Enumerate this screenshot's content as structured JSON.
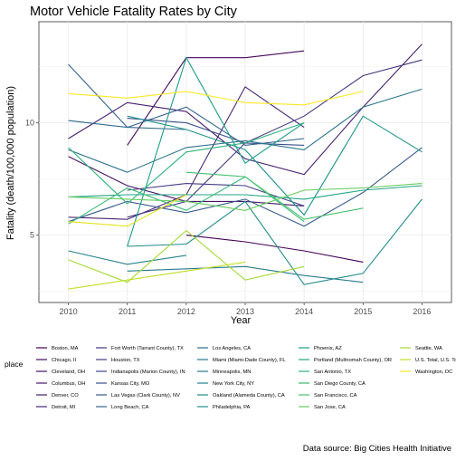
{
  "chart_data": {
    "type": "line",
    "title": "Motor Vehicle Fatality Rates by City",
    "xlabel": "Year",
    "ylabel": "Fatality (death/100,000 population)",
    "caption": "Data source: Big Cities Health Initiative",
    "legend_title": "place",
    "legend_placement": "bottom",
    "grid": true,
    "xlim": [
      2009.5,
      2016.5
    ],
    "ylim": [
      2.0,
      14.5
    ],
    "x_ticks": [
      2010,
      2011,
      2012,
      2013,
      2014,
      2015,
      2016
    ],
    "y_ticks": [
      5,
      10
    ],
    "x": [
      2010,
      2011,
      2012,
      2013,
      2014,
      2015,
      2016
    ],
    "series": [
      {
        "name": "Boston, MA",
        "color": "#440154",
        "values": [
          null,
          null,
          5.0,
          4.7,
          4.3,
          3.8,
          null
        ]
      },
      {
        "name": "Chicago, Il",
        "color": "#46085c",
        "values": [
          null,
          9.0,
          12.9,
          12.9,
          13.2,
          null,
          null
        ]
      },
      {
        "name": "Cleveland, OH",
        "color": "#471063",
        "values": [
          null,
          null,
          null,
          null,
          null,
          null,
          null
        ]
      },
      {
        "name": "Columbus, OH",
        "color": "#481769",
        "values": [
          8.5,
          7.2,
          6.5,
          6.5,
          6.3,
          null,
          null
        ]
      },
      {
        "name": "Denver, CO",
        "color": "#471e6f",
        "values": [
          9.3,
          10.9,
          10.5,
          8.4,
          7.7,
          10.7,
          13.5
        ]
      },
      {
        "name": "Detroit, MI",
        "color": "#472675",
        "values": [
          5.8,
          5.7,
          6.8,
          11.6,
          9.8,
          null,
          null
        ]
      },
      {
        "name": "Fort Worth (Tarrant County), TX",
        "color": "#453781",
        "values": [
          null,
          5.8,
          6.5,
          9.1,
          10.3,
          12.1,
          12.8
        ]
      },
      {
        "name": "Houston, TX",
        "color": "#433e85",
        "values": [
          null,
          7.0,
          7.3,
          7.2,
          6.3,
          null,
          null
        ]
      },
      {
        "name": "Indianapolis (Marion County), IN",
        "color": "#3f4788",
        "values": [
          null,
          null,
          null,
          null,
          null,
          null,
          null
        ]
      },
      {
        "name": "Kansas City, MO",
        "color": "#3b528b",
        "values": [
          null,
          10.2,
          10.0,
          9.1,
          9.0,
          null,
          null
        ]
      },
      {
        "name": "Las Vegas (Clark County), NV",
        "color": "#375b8d",
        "values": [
          5.6,
          6.5,
          6.0,
          6.6,
          5.4,
          6.9,
          8.9
        ]
      },
      {
        "name": "Long Beach, CA",
        "color": "#33638d",
        "values": [
          12.6,
          9.8,
          10.7,
          9.0,
          9.3,
          null,
          null
        ]
      },
      {
        "name": "Los Angeles, CA",
        "color": "#2f6b8e",
        "values": [
          10.1,
          9.8,
          9.7,
          null,
          null,
          null,
          null
        ]
      },
      {
        "name": "Miami (Miami-Dade County), FL",
        "color": "#2c738e",
        "values": [
          8.8,
          7.8,
          8.9,
          9.2,
          8.8,
          10.7,
          11.5
        ]
      },
      {
        "name": "Minneapolis, MN",
        "color": "#297b8e",
        "values": [
          null,
          3.4,
          3.5,
          3.6,
          3.2,
          2.9,
          null
        ]
      },
      {
        "name": "New York City, NY",
        "color": "#26828e",
        "values": [
          4.3,
          3.7,
          4.1,
          null,
          null,
          null,
          null
        ]
      },
      {
        "name": "Oakland (Alameda County), CA",
        "color": "#228b8d",
        "values": [
          null,
          4.5,
          4.6,
          6.5,
          2.8,
          3.3,
          6.6
        ]
      },
      {
        "name": "Philadelphia, PA",
        "color": "#1f938b",
        "values": [
          null,
          10.3,
          9.7,
          8.8,
          5.9,
          10.3,
          8.7
        ]
      },
      {
        "name": "Phoenix, AZ",
        "color": "#1e9b8a",
        "values": [
          null,
          4.5,
          12.9,
          8.2,
          10.0,
          null,
          null
        ]
      },
      {
        "name": "Portland (Multnomah County), OR",
        "color": "#21a585",
        "values": [
          6.7,
          6.8,
          6.8,
          6.8,
          6.6,
          7.0,
          7.2
        ]
      },
      {
        "name": "San Antonio, TX",
        "color": "#2eb37c",
        "values": [
          8.9,
          6.4,
          8.7,
          9.1,
          10.0,
          null,
          null
        ]
      },
      {
        "name": "San Diego County, CA",
        "color": "#3aba76",
        "values": [
          5.5,
          7.1,
          6.1,
          7.6,
          5.6,
          null,
          null
        ]
      },
      {
        "name": "San Francisco, CA",
        "color": "#46c06f",
        "values": [
          null,
          null,
          7.8,
          7.6,
          5.7,
          6.2,
          null
        ]
      },
      {
        "name": "San Jose, CA",
        "color": "#65cb5e",
        "values": [
          6.7,
          6.6,
          6.5,
          6.1,
          7.0,
          7.1,
          7.3
        ]
      },
      {
        "name": "Seattle, WA",
        "color": "#a2da37",
        "values": [
          3.9,
          2.9,
          5.2,
          3.0,
          3.6,
          null,
          null
        ]
      },
      {
        "name": "U.S. Total, U.S. Total",
        "color": "#c0df25",
        "values": [
          2.6,
          3.0,
          3.4,
          3.8,
          null,
          null,
          null
        ]
      },
      {
        "name": "Washington, DC",
        "color": "#fde725",
        "values": [
          11.3,
          11.1,
          11.4,
          10.9,
          10.8,
          11.4,
          null
        ]
      },
      {
        "name": "",
        "color": "#e2e418",
        "values": [
          5.6,
          5.4,
          6.8,
          null,
          null,
          null,
          null
        ]
      }
    ]
  }
}
